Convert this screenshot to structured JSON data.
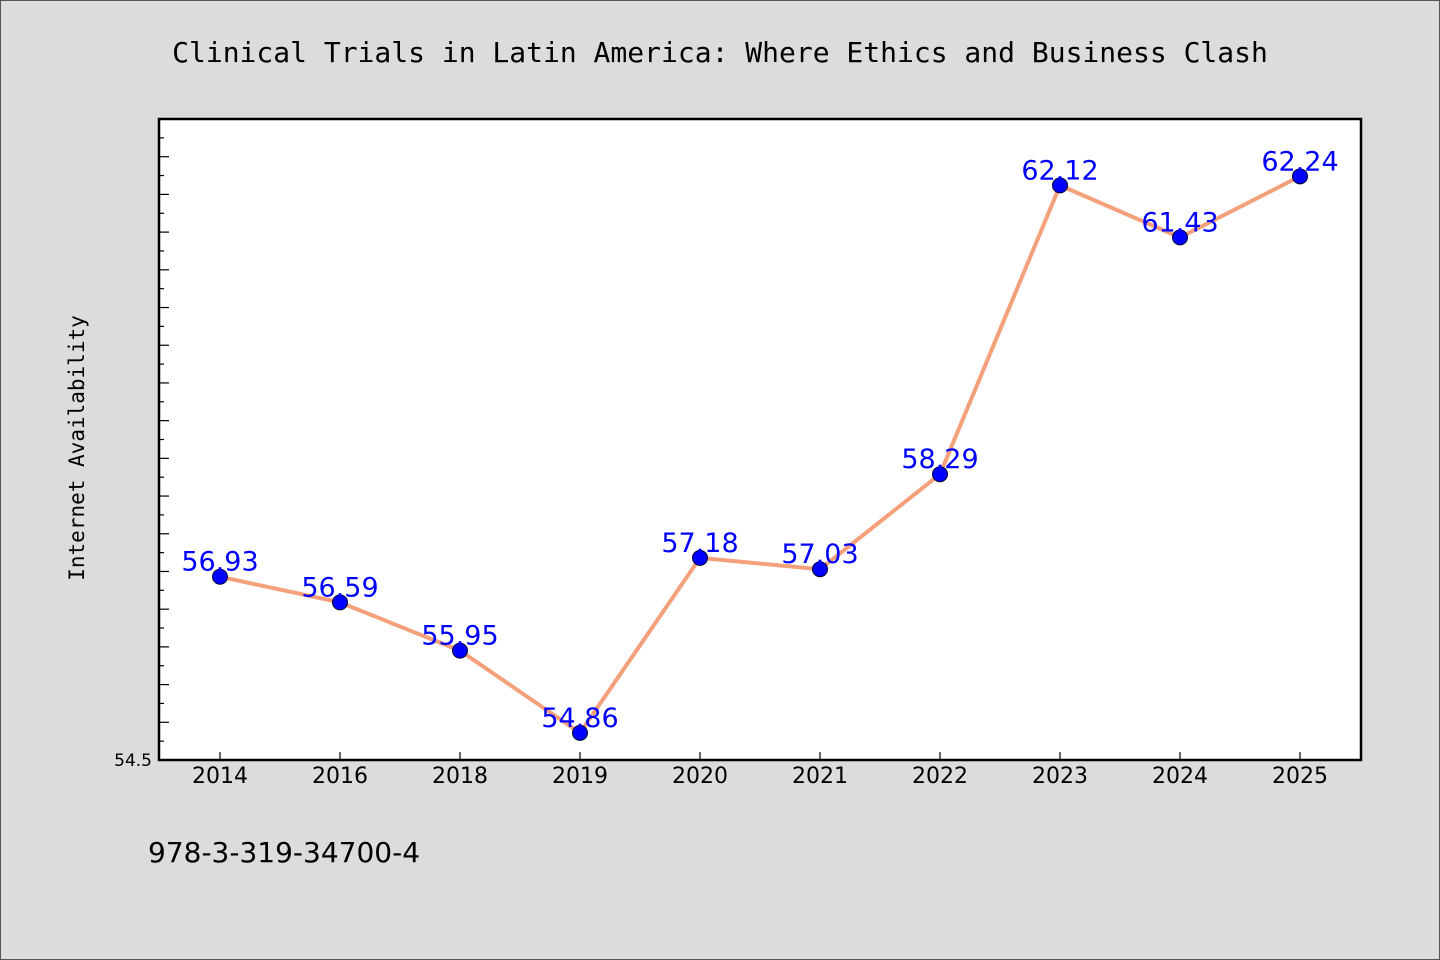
{
  "chart_data": {
    "type": "line",
    "title": "Clinical Trials in Latin America: Where Ethics and Business Clash",
    "xlabel": "",
    "ylabel": "Internet Availability",
    "categories": [
      "2014",
      "2016",
      "2018",
      "2019",
      "2020",
      "2021",
      "2022",
      "2023",
      "2024",
      "2025"
    ],
    "series": [
      {
        "values": [
          56.93,
          56.59,
          55.95,
          54.86,
          57.18,
          57.03,
          58.29,
          62.12,
          61.43,
          62.24
        ],
        "data_labels": [
          "56.93",
          "56.59",
          "55.95",
          "54.86",
          "57.18",
          "57.03",
          "58.29",
          "62.12",
          "61.43",
          "62.24"
        ]
      }
    ],
    "ylim": [
      54.5,
      63.0
    ],
    "y_tick_label": "54.5",
    "grid": false,
    "line_color": "#f4a07a",
    "marker_color": "#0000ff",
    "label_color": "#0000ff",
    "plot_background": "#ffffff",
    "page_background": "#dcdcdc"
  },
  "footnote": "978-3-319-34700-4"
}
